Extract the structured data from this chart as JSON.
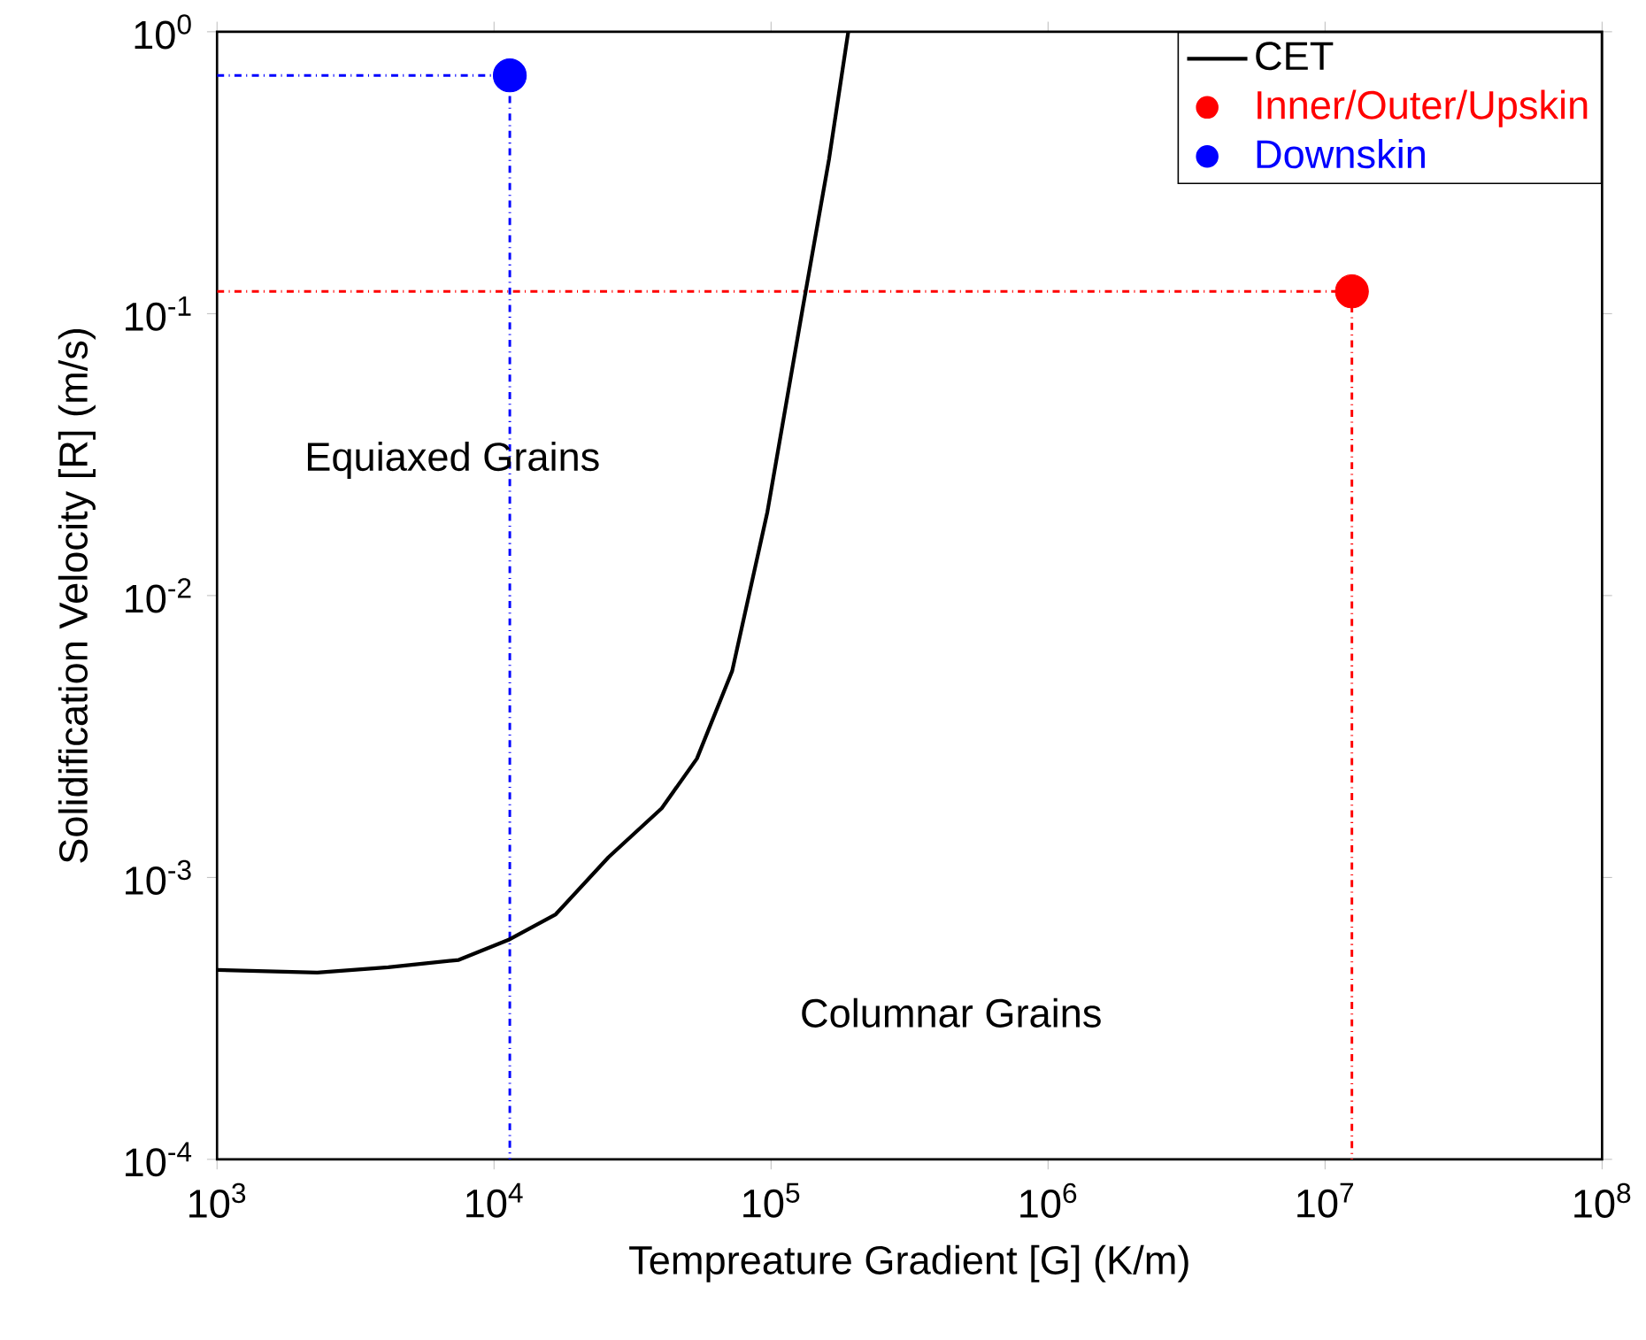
{
  "chart_data": {
    "type": "line",
    "xlabel": "Tempreature Gradient [G] (K/m)",
    "ylabel": "Solidification Velocity [R] (m/s)",
    "log": "xy",
    "legend": "top right",
    "grid": false,
    "xlim": [
      1000,
      100000000
    ],
    "ylim": [
      0.0001,
      1
    ],
    "xticks": [
      {
        "value": 1000,
        "label": "10$^{3}$"
      },
      {
        "value": 10000,
        "label": "10$^{4}$"
      },
      {
        "value": 100000,
        "label": "10$^{5}$"
      },
      {
        "value": 1000000,
        "label": "10$^{6}$"
      },
      {
        "value": 10000000,
        "label": "10$^{7}$"
      },
      {
        "value": 100000000,
        "label": "10$^{8}$"
      }
    ],
    "yticks": [
      {
        "value": 0.0001,
        "label": "10$^{-4}$"
      },
      {
        "value": 0.001,
        "label": "10$^{-3}$"
      },
      {
        "value": 0.01,
        "label": "10$^{-2}$"
      },
      {
        "value": 0.1,
        "label": "10$^{-1}$"
      },
      {
        "value": 1,
        "label": "10$^{0}$"
      }
    ],
    "annotations": [
      "Equiaxed Grains",
      "Columnar Grains"
    ],
    "series": [
      {
        "type": "line",
        "color": "#ff0000",
        "line_style": "dashed",
        "marker": "none",
        "x": [
          1000,
          12500000,
          12500000
        ],
        "values": [
          0.12,
          0.12,
          0.0001
        ]
      },
      {
        "type": "line",
        "color": "#0000ff",
        "line_style": "dashed",
        "marker": "none",
        "x": [
          1000,
          11400,
          11400
        ],
        "values": [
          0.7,
          0.7,
          0.0001
        ]
      },
      {
        "name": "CET",
        "color": "#000000",
        "line_style": "solid",
        "marker": "none",
        "x": [
          1000,
          2300,
          4150,
          7460,
          11250,
          16700,
          25900,
          40300,
          54000,
          72400,
          97000,
          130000,
          162000,
          190000
        ],
        "values": [
          0.00047,
          0.00046,
          0.00048,
          0.00051,
          0.0006,
          0.00074,
          0.00118,
          0.00176,
          0.00264,
          0.0054,
          0.0198,
          0.104,
          0.354,
          1
        ]
      },
      {
        "type": "scatter",
        "name": "Inner/Outer/Upskin",
        "color": "#ff0000",
        "marker": "circle",
        "x": [
          12500000
        ],
        "values": [
          0.12
        ]
      },
      {
        "type": "scatter",
        "name": "Downskin",
        "color": "#0000ff",
        "marker": "circle",
        "x": [
          11400
        ],
        "values": [
          0.7
        ]
      }
    ]
  }
}
